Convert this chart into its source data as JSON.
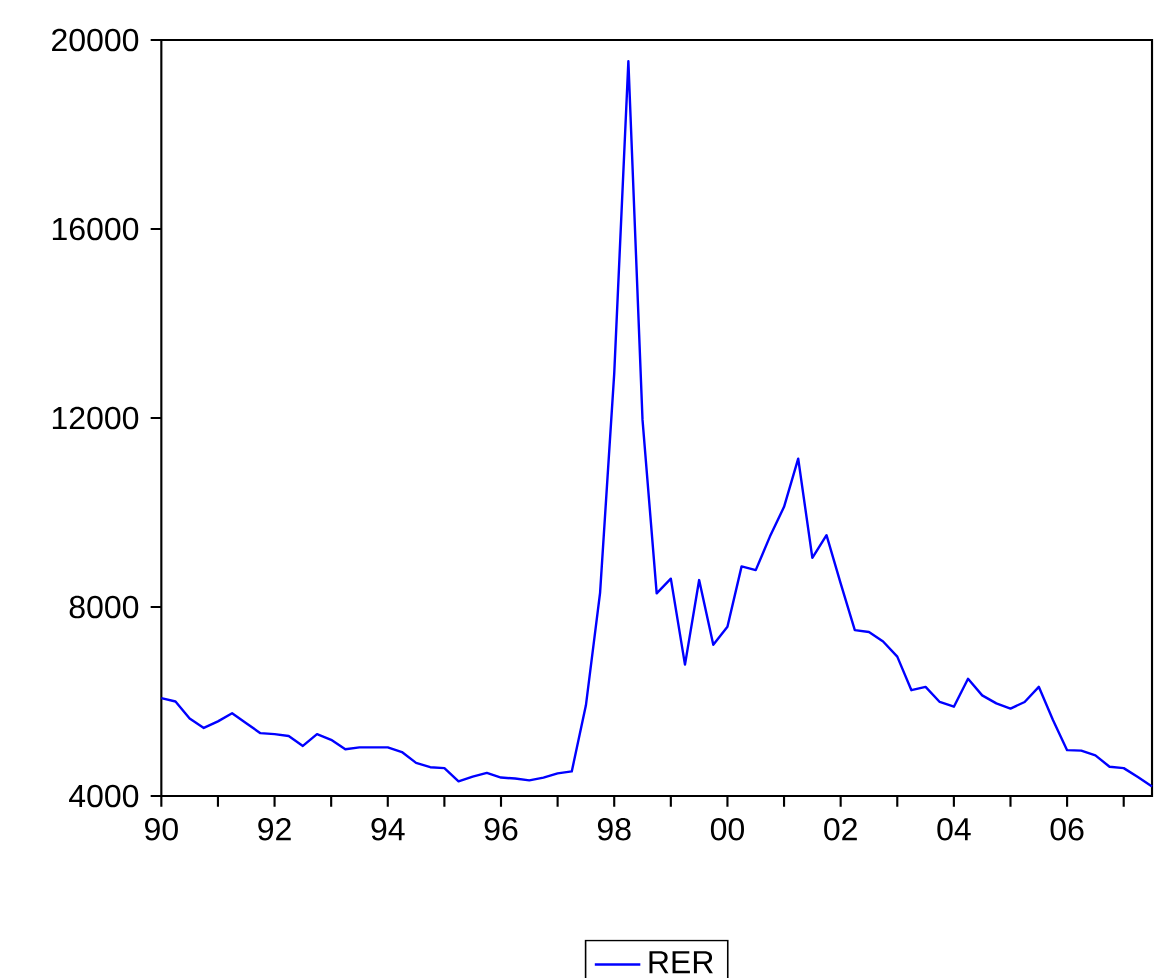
{
  "chart_data": {
    "type": "line",
    "x": [
      1990,
      1990.25,
      1990.5,
      1990.75,
      1991,
      1991.25,
      1991.5,
      1991.75,
      1992,
      1992.25,
      1992.5,
      1992.75,
      1993,
      1993.25,
      1993.5,
      1993.75,
      1994,
      1994.25,
      1994.5,
      1994.75,
      1995,
      1995.25,
      1995.5,
      1995.75,
      1996,
      1996.25,
      1996.5,
      1996.75,
      1997,
      1997.25,
      1997.5,
      1997.75,
      1998,
      1998.25,
      1998.5,
      1998.75,
      1999,
      1999.25,
      1999.5,
      1999.75,
      2000,
      2000.25,
      2000.5,
      2000.75,
      2001,
      2001.25,
      2001.5,
      2001.75,
      2002,
      2002.25,
      2002.5,
      2002.75,
      2003,
      2003.25,
      2003.5,
      2003.75,
      2004,
      2004.25,
      2004.5,
      2004.75,
      2005,
      2005.25,
      2005.5,
      2005.75,
      2006,
      2006.25,
      2006.5,
      2006.75,
      2007,
      2007.25,
      2007.5
    ],
    "series": [
      {
        "name": "RER",
        "color": "#0000ff",
        "values": [
          6070,
          6000,
          5640,
          5440,
          5580,
          5750,
          5540,
          5330,
          5310,
          5270,
          5060,
          5310,
          5190,
          4990,
          5030,
          5030,
          5030,
          4930,
          4700,
          4610,
          4590,
          4310,
          4410,
          4490,
          4390,
          4370,
          4330,
          4390,
          4480,
          4520,
          5920,
          8300,
          12940,
          19550,
          11960,
          8290,
          8600,
          6780,
          8570,
          7200,
          7580,
          8860,
          8780,
          9490,
          10120,
          11140,
          9040,
          9520,
          8500,
          7510,
          7470,
          7270,
          6950,
          6240,
          6310,
          5990,
          5890,
          6480,
          6130,
          5960,
          5850,
          5990,
          6310,
          5610,
          4970,
          4960,
          4860,
          4620,
          4590,
          4400,
          4200
        ]
      }
    ],
    "xlim": [
      1990,
      2007.5
    ],
    "ylim": [
      4000,
      20000
    ],
    "yticks": [
      4000,
      8000,
      12000,
      16000,
      20000
    ],
    "xticks": [
      {
        "value": 1990,
        "label": "90"
      },
      {
        "value": 1991,
        "label": null
      },
      {
        "value": 1992,
        "label": "92"
      },
      {
        "value": 1993,
        "label": null
      },
      {
        "value": 1994,
        "label": "94"
      },
      {
        "value": 1995,
        "label": null
      },
      {
        "value": 1996,
        "label": "96"
      },
      {
        "value": 1997,
        "label": null
      },
      {
        "value": 1998,
        "label": "98"
      },
      {
        "value": 1999,
        "label": null
      },
      {
        "value": 2000,
        "label": "00"
      },
      {
        "value": 2001,
        "label": null
      },
      {
        "value": 2002,
        "label": "02"
      },
      {
        "value": 2003,
        "label": null
      },
      {
        "value": 2004,
        "label": "04"
      },
      {
        "value": 2005,
        "label": null
      },
      {
        "value": 2006,
        "label": "06"
      },
      {
        "value": 2007,
        "label": null
      }
    ],
    "grid": false,
    "legend": "bottom",
    "marker": "none",
    "line_style": "solid"
  }
}
